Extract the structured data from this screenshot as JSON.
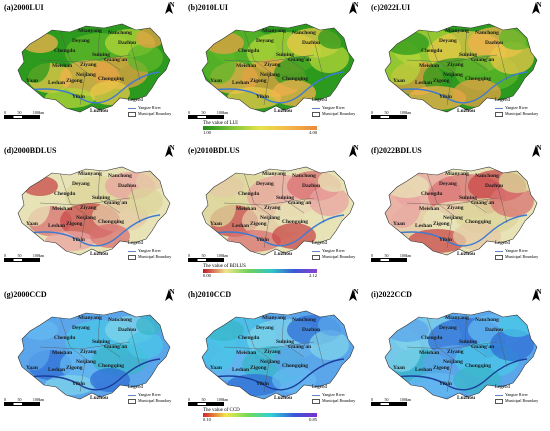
{
  "cities": [
    "Mianyang",
    "Nanchong",
    "Deyang",
    "Dazhou",
    "Chengdu",
    "Suining",
    "Guang'an",
    "Meishan",
    "Ziyang",
    "Neijiang",
    "Yaan",
    "Leshan",
    "Zigong",
    "Chongqing",
    "Yibin",
    "Luzhou"
  ],
  "rows": [
    {
      "colors": [
        "#2c9a1e",
        "#5fb72a",
        "#b6d63a",
        "#e9c848",
        "#f1b24d",
        "#e5a044"
      ],
      "river": "#3f7bd0",
      "panels": [
        {
          "title": "(a)2000LUI"
        },
        {
          "title": "(b)2010LUI"
        },
        {
          "title": "(c)2022LUI"
        }
      ],
      "colorbar": {
        "title": "The value of LUI",
        "min": "1.00",
        "max": "4.00",
        "gradient": "#1f8a1a,#7cc43a,#e6e24b,#f4b84a,#e88a3a"
      }
    },
    {
      "colors": [
        "#e7e3b6",
        "#dcd69a",
        "#e9a3a0",
        "#d97272",
        "#c84a4a",
        "#e4c9a6"
      ],
      "river": "#3f7bd0",
      "panels": [
        {
          "title": "(d)2000BDLUS"
        },
        {
          "title": "(e)2010BDLUS"
        },
        {
          "title": "(f)2022BDLUS"
        }
      ],
      "colorbar": {
        "title": "The value of BDLUS",
        "min": "0.00",
        "max": "2.12",
        "gradient": "#c2172d,#f0e68a,#6fd05a,#2fc7c6,#3a57d6,#8b3fd0"
      }
    },
    {
      "colors": [
        "#5ba6ea",
        "#48c6e6",
        "#7fd3ea",
        "#2f6fd6",
        "#63b8f0",
        "#3ab5c9"
      ],
      "river": "#1d3f9a",
      "panels": [
        {
          "title": "(g)2000CCD"
        },
        {
          "title": "(h)2010CCD"
        },
        {
          "title": "(i)2022CCD"
        }
      ],
      "colorbar": {
        "title": "The value of CCD",
        "min": "0.10",
        "max": "0.85",
        "gradient": "#d4242a,#f3e64a,#6fdb5c,#2fd0d6,#3a57d6,#7a2ed0"
      }
    }
  ],
  "scale": {
    "zero": "0",
    "mid": "50",
    "end": "100km"
  },
  "legend": {
    "title": "Legend",
    "river": "Yangtze River",
    "boundary": "Municipal Boundary"
  },
  "north": "N"
}
